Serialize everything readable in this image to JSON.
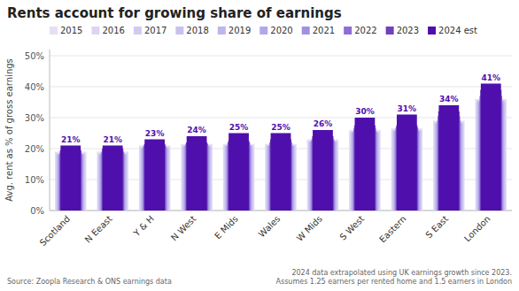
{
  "chart_data": {
    "type": "bar",
    "title": "Rents account for growing share of earnings",
    "ylabel": "Avg. rent as % of gross earnings",
    "categories": [
      "Scotland",
      "N Eeast",
      "Y & H",
      "N West",
      "E Mids",
      "Wales",
      "W Mids",
      "S West",
      "Eastern",
      "S East",
      "London"
    ],
    "series": [
      {
        "name": "2015",
        "color": "#e8ddf7",
        "values": [
          19.0,
          19.0,
          21.0,
          21.5,
          21.5,
          21.5,
          23.0,
          26.0,
          26.5,
          29.0,
          36.0
        ]
      },
      {
        "name": "2016",
        "color": "#ddd4f4",
        "values": [
          18.5,
          18.5,
          20.5,
          21.0,
          21.0,
          21.0,
          22.5,
          25.5,
          26.0,
          28.5,
          35.5
        ]
      },
      {
        "name": "2017",
        "color": "#d3caf2",
        "values": [
          18.2,
          18.2,
          20.2,
          20.8,
          20.8,
          20.8,
          22.2,
          25.2,
          25.8,
          28.2,
          35.2
        ]
      },
      {
        "name": "2018",
        "color": "#c9c0ef",
        "values": [
          18.0,
          18.0,
          20.0,
          20.5,
          20.5,
          20.5,
          22.0,
          25.0,
          25.5,
          28.0,
          35.0
        ]
      },
      {
        "name": "2019",
        "color": "#bdb5eb",
        "values": [
          18.2,
          18.2,
          20.3,
          20.8,
          21.0,
          21.0,
          22.3,
          25.3,
          25.8,
          28.3,
          35.5
        ]
      },
      {
        "name": "2020",
        "color": "#b0a8e8",
        "values": [
          17.8,
          17.8,
          20.0,
          20.5,
          20.8,
          20.8,
          22.0,
          25.0,
          25.5,
          28.0,
          34.0
        ]
      },
      {
        "name": "2021",
        "color": "#a090e0",
        "values": [
          18.0,
          18.5,
          20.5,
          21.0,
          21.0,
          21.0,
          22.5,
          25.5,
          26.0,
          29.0,
          35.0
        ]
      },
      {
        "name": "2022",
        "color": "#8c6ed4",
        "values": [
          18.5,
          19.0,
          21.0,
          21.5,
          22.0,
          22.0,
          23.0,
          26.5,
          26.8,
          30.5,
          37.0
        ]
      },
      {
        "name": "2023",
        "color": "#7040be",
        "values": [
          19.5,
          20.0,
          21.5,
          22.0,
          22.5,
          23.0,
          24.0,
          27.5,
          27.5,
          32.0,
          39.0
        ]
      },
      {
        "name": "2024 est",
        "color": "#4f0fad",
        "values": [
          21.0,
          21.0,
          23.0,
          24.0,
          25.0,
          25.0,
          26.0,
          30.0,
          31.0,
          34.0,
          41.0
        ],
        "data_labels": true,
        "value_labels": [
          "21%",
          "21%",
          "23%",
          "24%",
          "25%",
          "25%",
          "26%",
          "30%",
          "31%",
          "34%",
          "41%"
        ]
      }
    ],
    "ylim": [
      0,
      52
    ],
    "yticks": [
      {
        "value": 0,
        "label": "0%"
      },
      {
        "value": 10,
        "label": "10%"
      },
      {
        "value": 20,
        "label": "20%"
      },
      {
        "value": 30,
        "label": "30%"
      },
      {
        "value": 40,
        "label": "40%"
      },
      {
        "value": 50,
        "label": "50%"
      }
    ],
    "grid": true,
    "legend": "top",
    "source": "Source: Zoopla Research & ONS earnings data",
    "note": "2024 data extrapolated using UK earnings growth since 2023.\nAssumes 1.25 earners per rented home and 1.5 earners in London"
  }
}
